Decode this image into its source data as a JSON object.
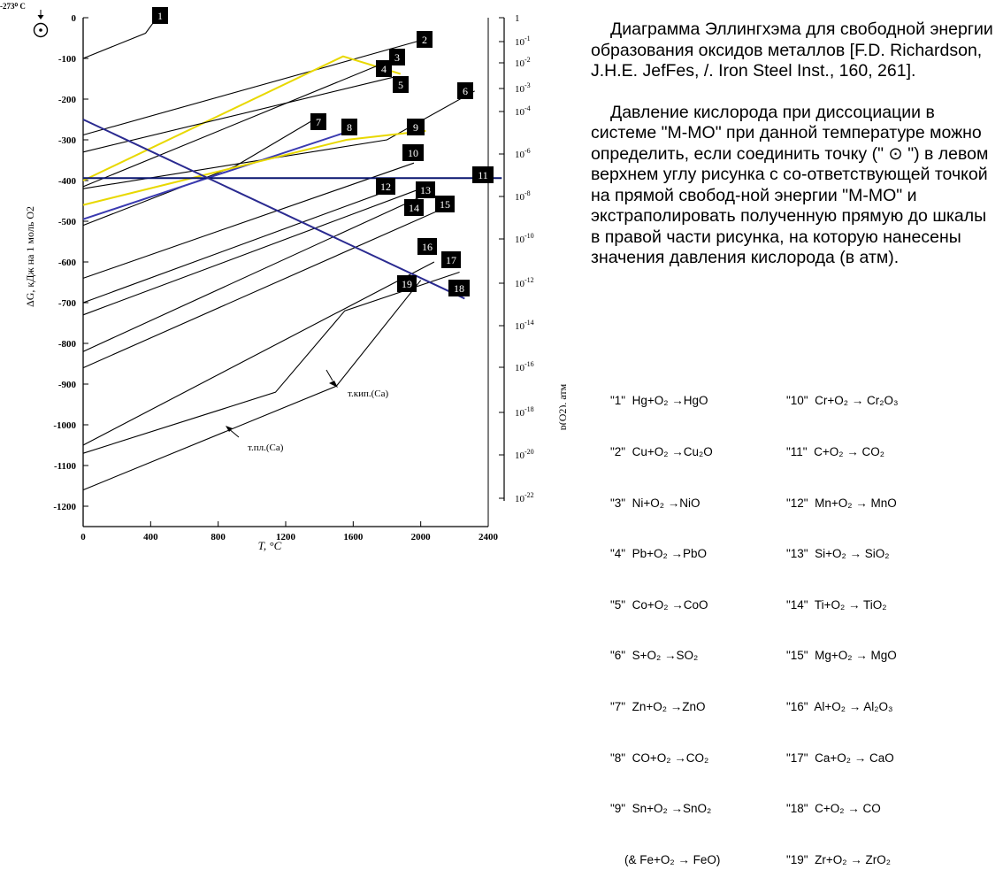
{
  "chart_data": {
    "type": "line",
    "title": "Ellingham diagram",
    "xlabel": "T, °C",
    "ylabel": "ΔG, кДж на 1 моль O2",
    "right_axis_label": "p(O2), атм",
    "xlim": [
      0,
      2400
    ],
    "ylim": [
      -1250,
      0
    ],
    "x_ticks": [
      "0",
      "400",
      "800",
      "1200",
      "1600",
      "2000",
      "2400"
    ],
    "y_ticks": [
      "0",
      "-100",
      "-200",
      "-300",
      "-400",
      "-500",
      "-600",
      "-700",
      "-800",
      "-900",
      "-1000",
      "-1100",
      "-1200"
    ],
    "po2_scale": [
      {
        "label": "1",
        "exp": null
      },
      {
        "label": "10",
        "exp": "-1"
      },
      {
        "label": "10",
        "exp": "-2"
      },
      {
        "label": "10",
        "exp": "-3"
      },
      {
        "label": "10",
        "exp": "-4"
      },
      {
        "label": "10",
        "exp": "-6"
      },
      {
        "label": "10",
        "exp": "-8"
      },
      {
        "label": "10",
        "exp": "-10"
      },
      {
        "label": "10",
        "exp": "-12"
      },
      {
        "label": "10",
        "exp": "-14"
      },
      {
        "label": "10",
        "exp": "-16"
      },
      {
        "label": "10",
        "exp": "-18"
      },
      {
        "label": "10",
        "exp": "-20"
      },
      {
        "label": "10",
        "exp": "-22"
      }
    ],
    "origin_marker": "-273⁰ C",
    "series": [
      {
        "name": "1",
        "points": [
          [
            0,
            -100
          ],
          [
            370,
            -38
          ],
          [
            420,
            -10
          ]
        ]
      },
      {
        "name": "2",
        "points": [
          [
            0,
            -288
          ],
          [
            2050,
            -50
          ]
        ]
      },
      {
        "name": "3",
        "points": [
          [
            0,
            -400
          ],
          [
            1540,
            -95
          ],
          [
            1880,
            -138
          ]
        ],
        "color": "#e8d800"
      },
      {
        "name": "4",
        "points": [
          [
            0,
            -415
          ],
          [
            1820,
            -105
          ]
        ]
      },
      {
        "name": "5",
        "points": [
          [
            0,
            -330
          ],
          [
            1850,
            -145
          ]
        ]
      },
      {
        "name": "6",
        "points": [
          [
            0,
            -420
          ],
          [
            1800,
            -300
          ],
          [
            2320,
            -180
          ]
        ]
      },
      {
        "name": "7",
        "points": [
          [
            0,
            -510
          ],
          [
            900,
            -365
          ],
          [
            1430,
            -235
          ]
        ]
      },
      {
        "name": "8",
        "points": [
          [
            0,
            -495
          ],
          [
            1590,
            -277
          ]
        ],
        "color": "#3a3ab0"
      },
      {
        "name": "9",
        "points": [
          [
            0,
            -460
          ],
          [
            1560,
            -300
          ],
          [
            2030,
            -278
          ]
        ],
        "color": "#e8d800"
      },
      {
        "name": "10",
        "points": [
          [
            0,
            -640
          ],
          [
            1960,
            -357
          ]
        ]
      },
      {
        "name": "11",
        "points": [
          [
            0,
            -394
          ],
          [
            2480,
            -394
          ]
        ],
        "color": "#0a1670"
      },
      {
        "name": "12",
        "points": [
          [
            0,
            -700
          ],
          [
            1840,
            -420
          ]
        ]
      },
      {
        "name": "13",
        "points": [
          [
            0,
            -730
          ],
          [
            2000,
            -420
          ]
        ]
      },
      {
        "name": "14",
        "points": [
          [
            0,
            -820
          ],
          [
            2000,
            -440
          ]
        ]
      },
      {
        "name": "15",
        "points": [
          [
            0,
            -860
          ],
          [
            2180,
            -460
          ]
        ]
      },
      {
        "name": "16",
        "points": [
          [
            0,
            -1050
          ],
          [
            2080,
            -600
          ]
        ]
      },
      {
        "name": "17",
        "points": [
          [
            0,
            -1070
          ],
          [
            1140,
            -920
          ],
          [
            1550,
            -720
          ],
          [
            2230,
            -625
          ]
        ]
      },
      {
        "name": "18",
        "points": [
          [
            0,
            -250
          ],
          [
            2260,
            -690
          ]
        ],
        "color": "#2a2a90"
      },
      {
        "name": "19",
        "points": [
          [
            0,
            -1160
          ],
          [
            1500,
            -905
          ],
          [
            2000,
            -645
          ]
        ]
      }
    ],
    "labels": [
      {
        "text": "1"
      },
      {
        "text": "2"
      },
      {
        "text": "3"
      },
      {
        "text": "4"
      },
      {
        "text": "5"
      },
      {
        "text": "6"
      },
      {
        "text": "7"
      },
      {
        "text": "8"
      },
      {
        "text": "9"
      },
      {
        "text": "10"
      },
      {
        "text": "11"
      },
      {
        "text": "12"
      },
      {
        "text": "13"
      },
      {
        "text": "14"
      },
      {
        "text": "15"
      },
      {
        "text": "16"
      },
      {
        "text": "17"
      },
      {
        "text": "18"
      },
      {
        "text": "19"
      }
    ],
    "annotations": [
      {
        "text": "т.кип.(Ca)"
      },
      {
        "text": "т.пл.(Ca)"
      }
    ]
  },
  "description": {
    "paragraph1": "Диаграмма Эллингхэма для свободной энергии образования оксидов металлов [F.D. Richardson, J.H.E. JefFes, /. Iron Steel Inst., 160, 261].",
    "paragraph2": "Давление кислорода при диссоциации в системе \"M-MO\" при данной температуре можно определить, если соединить точку (\" ⊙ \") в левом верхнем углу рисунка с со-ответствующей точкой на прямой свобод-ной энергии \"M-MO\" и экстраполировать полученную прямую до шкалы в правой части рисунка, на которую нанесены значения давления кислорода (в атм)."
  },
  "reactions_left": [
    "\"1\"  Hg+O₂ →HgO",
    "\"2\"  Cu+O₂ →Cu₂O",
    "\"3\"  Ni+O₂ →NiO",
    "\"4\"  Pb+O₂ →PbO",
    "\"5\"  Co+O₂ →CoO",
    "\"6\"  S+O₂ →SO₂",
    "\"7\"  Zn+O₂ →ZnO",
    "\"8\"  CO+O₂ →CO₂",
    "\"9\"  Sn+O₂ →SnO₂"
  ],
  "reactions_left_extra": "(& Fe+O₂ → FeO)",
  "reactions_right": [
    "\"10\"  Cr+O₂ → Cr₂O₃",
    "\"11\"  C+O₂ → CO₂",
    "\"12\"  Mn+O₂ → MnO",
    "\"13\"  Si+O₂ → SiO₂",
    "\"14\"  Ti+O₂ → TiO₂",
    "\"15\"  Mg+O₂ → MgO",
    "\"16\"  Al+O₂ → Al₂O₃",
    "\"17\"  Ca+O₂ → CaO",
    "\"18\"  C+O₂ → CO",
    "\"19\"  Zr+O₂ → ZrO₂"
  ]
}
